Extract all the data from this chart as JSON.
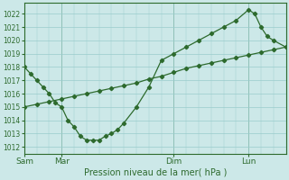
{
  "line1_x": [
    0,
    0.5,
    1,
    1.5,
    2,
    2.5,
    3,
    3.5,
    4,
    4.5,
    5,
    5.5,
    6,
    6.5,
    7,
    7.5,
    8,
    9,
    10,
    11,
    12,
    13,
    14,
    15,
    16,
    17,
    18,
    18.5,
    19,
    19.5,
    20,
    21
  ],
  "line1_y": [
    1018,
    1017.5,
    1017,
    1016.5,
    1016,
    1015.3,
    1015,
    1014,
    1013.5,
    1012.8,
    1012.5,
    1012.5,
    1012.5,
    1012.8,
    1013,
    1013.3,
    1013.8,
    1015,
    1016.5,
    1018.5,
    1019,
    1019.5,
    1020,
    1020.5,
    1021,
    1021.5,
    1022.3,
    1022,
    1021,
    1020.3,
    1020,
    1019.5
  ],
  "line2_x": [
    0,
    1,
    2,
    3,
    4,
    5,
    6,
    7,
    8,
    9,
    10,
    11,
    12,
    13,
    14,
    15,
    16,
    17,
    18,
    19,
    20,
    21
  ],
  "line2_y": [
    1015.0,
    1015.2,
    1015.4,
    1015.6,
    1015.8,
    1016.0,
    1016.2,
    1016.4,
    1016.6,
    1016.8,
    1017.1,
    1017.3,
    1017.6,
    1017.9,
    1018.1,
    1018.3,
    1018.5,
    1018.7,
    1018.9,
    1019.1,
    1019.3,
    1019.5
  ],
  "xtick_positions": [
    0,
    3,
    12,
    18
  ],
  "xtick_labels": [
    "Sam",
    "Mar",
    "Dim",
    "Lun"
  ],
  "vline_positions": [
    0,
    3,
    12,
    18
  ],
  "ylim": [
    1011.5,
    1022.8
  ],
  "yticks": [
    1012,
    1013,
    1014,
    1015,
    1016,
    1017,
    1018,
    1019,
    1020,
    1021,
    1022
  ],
  "xlabel": "Pression niveau de la mer( hPa )",
  "line_color": "#2d6a2d",
  "bg_color": "#cce8e8",
  "grid_color": "#99cccc",
  "fig_bg": "#cce8e8",
  "xlim": [
    0,
    21
  ],
  "ytick_fontsize": 5.5,
  "xtick_fontsize": 6.5,
  "xlabel_fontsize": 7
}
